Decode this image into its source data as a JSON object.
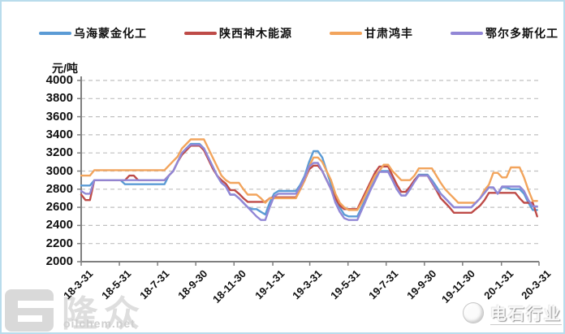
{
  "unit_label": "元/吨",
  "watermark_left": {
    "logo": "隆众",
    "site": "oilchem.net"
  },
  "watermark_right": {
    "text": "电石行业"
  },
  "chart_data": {
    "type": "line",
    "title": "",
    "ylabel": "元/吨",
    "grid": "horizontal-dashed",
    "legend_position": "top",
    "x_label_rotation": -45,
    "ylim": [
      2000,
      4000
    ],
    "y_ticks": [
      4000,
      3800,
      3600,
      3400,
      3200,
      3000,
      2800,
      2600,
      2400,
      2200,
      2000
    ],
    "x_tick_labels": [
      "18-3-31",
      "18-5-31",
      "18-7-31",
      "18-9-30",
      "18-11-30",
      "19-1-31",
      "19-3-31",
      "19-5-31",
      "19-7-31",
      "19-9-30",
      "19-11-30",
      "20-1-31",
      "20-3-31"
    ],
    "x_tick_weeks": [
      0,
      8.71,
      17.43,
      26.14,
      34.86,
      43.71,
      52.14,
      60.86,
      69.57,
      78.29,
      87.0,
      95.86,
      104.43
    ],
    "weeks_span": 104.43,
    "sampling": "weekly",
    "series": [
      {
        "name": "乌海蒙金化工",
        "color": "#5B9BD5",
        "values": [
          2840,
          2840,
          2840,
          2900,
          2900,
          2900,
          2900,
          2900,
          2900,
          2900,
          2855,
          2855,
          2855,
          2855,
          2855,
          2855,
          2855,
          2855,
          2855,
          2855,
          2950,
          3000,
          3100,
          3200,
          3250,
          3300,
          3300,
          3300,
          3250,
          3150,
          3050,
          2950,
          2870,
          2830,
          2740,
          2740,
          2700,
          2650,
          2600,
          2580,
          2580,
          2550,
          2520,
          2650,
          2750,
          2780,
          2780,
          2780,
          2780,
          2780,
          2850,
          2950,
          3100,
          3220,
          3220,
          3150,
          3000,
          2850,
          2700,
          2600,
          2520,
          2500,
          2500,
          2500,
          2600,
          2700,
          2800,
          2900,
          3000,
          3000,
          3000,
          2900,
          2800,
          2730,
          2730,
          2800,
          2900,
          2960,
          2960,
          2960,
          2900,
          2830,
          2750,
          2700,
          2650,
          2600,
          2600,
          2600,
          2600,
          2600,
          2650,
          2700,
          2760,
          2820,
          2820,
          2750,
          2820,
          2820,
          2800,
          2800,
          2800,
          2750,
          2650,
          2570,
          2570
        ]
      },
      {
        "name": "陕西神木能源",
        "color": "#BE4B48",
        "values": [
          2740,
          2680,
          2680,
          2900,
          2900,
          2900,
          2900,
          2900,
          2900,
          2900,
          2900,
          2950,
          2950,
          2900,
          2900,
          2900,
          2900,
          2900,
          2900,
          2900,
          2950,
          3000,
          3100,
          3180,
          3230,
          3280,
          3280,
          3280,
          3230,
          3130,
          3030,
          2950,
          2900,
          2860,
          2790,
          2790,
          2750,
          2700,
          2660,
          2660,
          2660,
          2660,
          2660,
          2700,
          2710,
          2710,
          2710,
          2710,
          2710,
          2710,
          2800,
          2900,
          3020,
          3060,
          3060,
          3000,
          2900,
          2800,
          2700,
          2620,
          2580,
          2580,
          2580,
          2580,
          2680,
          2780,
          2880,
          2980,
          3050,
          3050,
          3050,
          2950,
          2850,
          2770,
          2770,
          2830,
          2900,
          2950,
          2950,
          2950,
          2870,
          2790,
          2700,
          2650,
          2600,
          2540,
          2540,
          2540,
          2540,
          2540,
          2580,
          2620,
          2680,
          2760,
          2760,
          2760,
          2760,
          2760,
          2760,
          2760,
          2700,
          2650,
          2650,
          2650,
          2500
        ]
      },
      {
        "name": "甘肃鸿丰",
        "color": "#F2A45C",
        "values": [
          2950,
          2950,
          2950,
          3010,
          3010,
          3010,
          3010,
          3010,
          3010,
          3010,
          3010,
          3010,
          3010,
          3010,
          3010,
          3010,
          3010,
          3010,
          3010,
          3010,
          3060,
          3110,
          3160,
          3250,
          3300,
          3350,
          3350,
          3350,
          3350,
          3250,
          3150,
          3050,
          2950,
          2900,
          2870,
          2870,
          2870,
          2800,
          2740,
          2740,
          2740,
          2700,
          2650,
          2700,
          2700,
          2700,
          2700,
          2700,
          2700,
          2700,
          2800,
          2900,
          3050,
          3150,
          3150,
          3100,
          3000,
          2900,
          2750,
          2650,
          2600,
          2570,
          2570,
          2570,
          2650,
          2750,
          2850,
          2950,
          3000,
          3070,
          3070,
          3000,
          2950,
          2900,
          2900,
          2900,
          2950,
          3030,
          3030,
          3030,
          3030,
          2950,
          2870,
          2800,
          2750,
          2700,
          2650,
          2650,
          2650,
          2650,
          2650,
          2700,
          2790,
          2850,
          2980,
          2980,
          2930,
          2930,
          3040,
          3040,
          3040,
          2930,
          2790,
          2670,
          2670
        ]
      },
      {
        "name": "鄂尔多斯化工",
        "color": "#9287D6",
        "values": [
          2780,
          2750,
          2750,
          2900,
          2900,
          2900,
          2900,
          2900,
          2900,
          2900,
          2900,
          2900,
          2900,
          2900,
          2900,
          2900,
          2900,
          2900,
          2900,
          2900,
          2950,
          3000,
          3100,
          3200,
          3250,
          3290,
          3290,
          3290,
          3250,
          3150,
          3050,
          2950,
          2870,
          2830,
          2740,
          2740,
          2700,
          2650,
          2600,
          2550,
          2500,
          2460,
          2460,
          2600,
          2720,
          2750,
          2750,
          2750,
          2750,
          2750,
          2830,
          2930,
          3050,
          3090,
          3090,
          3000,
          2900,
          2800,
          2650,
          2550,
          2480,
          2460,
          2460,
          2460,
          2570,
          2680,
          2790,
          2890,
          2990,
          2990,
          2990,
          2900,
          2800,
          2730,
          2730,
          2800,
          2880,
          2950,
          2950,
          2950,
          2880,
          2800,
          2750,
          2700,
          2650,
          2600,
          2600,
          2600,
          2600,
          2600,
          2650,
          2700,
          2760,
          2820,
          2820,
          2750,
          2830,
          2830,
          2830,
          2830,
          2830,
          2780,
          2680,
          2610,
          2610
        ]
      }
    ]
  }
}
